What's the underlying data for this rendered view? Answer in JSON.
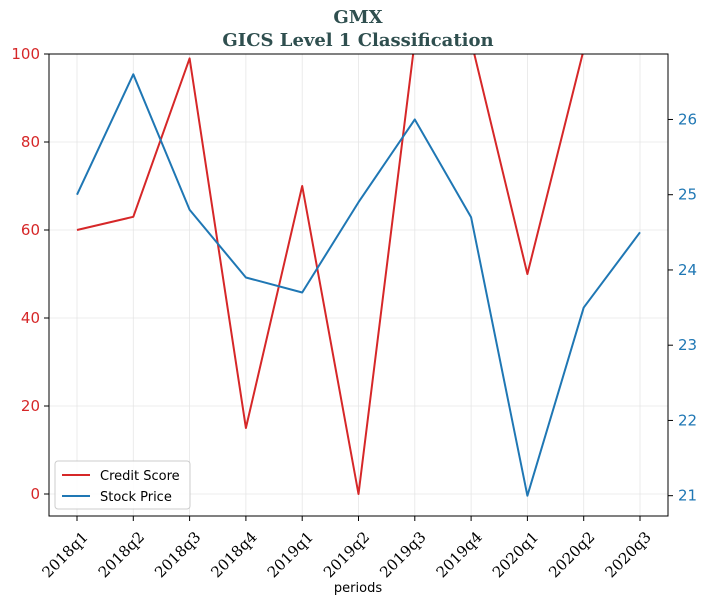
{
  "chart_data": {
    "type": "line",
    "title": "GMX",
    "subtitle": "GICS Level 1 Classification",
    "xlabel": "periods",
    "categories": [
      "2018q1",
      "2018q2",
      "2018q3",
      "2018q4",
      "2019q1",
      "2019q2",
      "2019q3",
      "2019q4",
      "2020q1",
      "2020q2",
      "2020q3"
    ],
    "y_left": {
      "ylim": [
        -5,
        100
      ],
      "ticks": [
        0,
        20,
        40,
        60,
        80,
        100
      ],
      "color": "#d62728"
    },
    "y_right": {
      "ylim": [
        20.73,
        26.87
      ],
      "ticks": [
        21,
        22,
        23,
        24,
        25,
        26
      ],
      "color": "#1f77b4"
    },
    "grid": true,
    "legend_position": "lower-left",
    "series": [
      {
        "name": "Credit Score",
        "axis": "left",
        "color": "#d62728",
        "values": [
          60,
          63,
          99,
          15,
          70,
          0,
          103,
          103,
          50,
          101,
          null
        ]
      },
      {
        "name": "Stock Price",
        "axis": "right",
        "color": "#1f77b4",
        "values": [
          25.0,
          26.6,
          24.8,
          23.9,
          23.7,
          24.9,
          26.0,
          24.7,
          21.0,
          23.5,
          24.5
        ]
      }
    ]
  }
}
